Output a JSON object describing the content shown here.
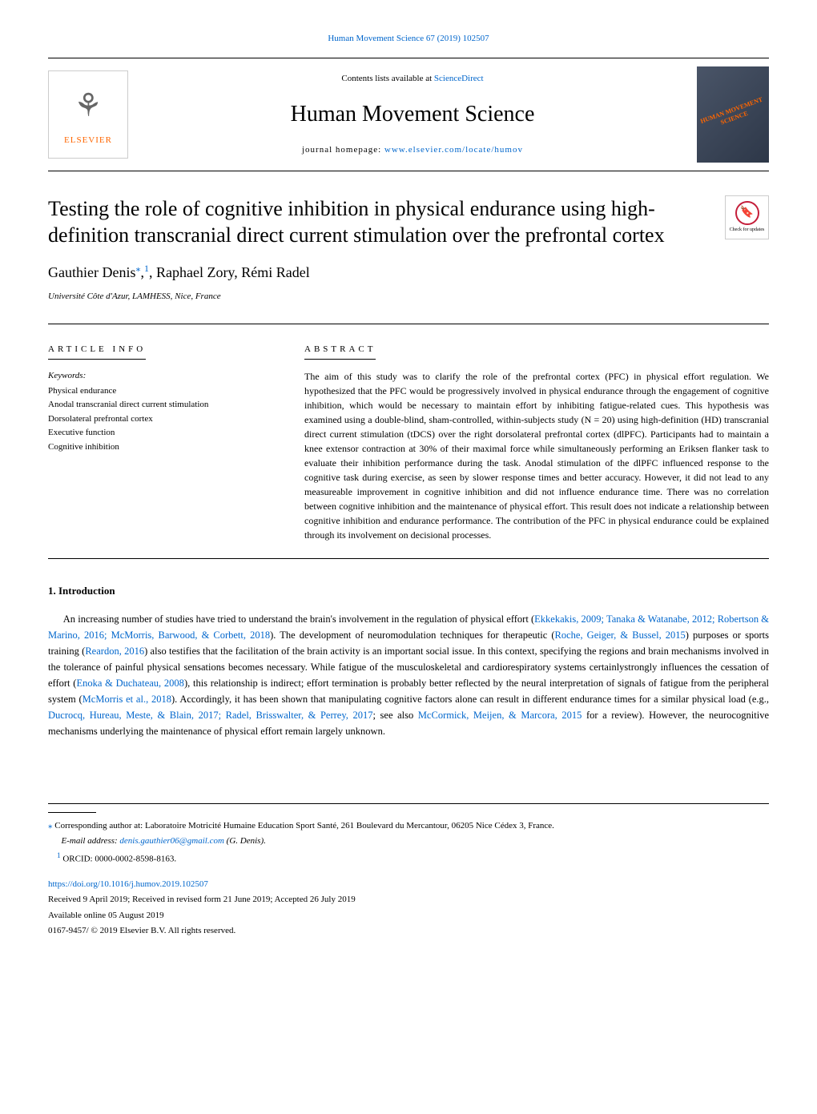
{
  "header": {
    "citation": "Human Movement Science 67 (2019) 102507",
    "citation_url": "Human Movement Science 67 (2019) 102507"
  },
  "banner": {
    "contents_prefix": "Contents lists available at ",
    "contents_link": "ScienceDirect",
    "journal": "Human Movement Science",
    "homepage_prefix": "journal homepage: ",
    "homepage_link": "www.elsevier.com/locate/humov",
    "publisher": "ELSEVIER",
    "cover_text": "HUMAN MOVEMENT SCIENCE"
  },
  "article": {
    "title": "Testing the role of cognitive inhibition in physical endurance using high-definition transcranial direct current stimulation over the prefrontal cortex",
    "authors_html": "Gauthier Denis",
    "author_sup1": "⁎",
    "author_sup2": "1",
    "authors_rest": ", Raphael Zory, Rémi Radel",
    "affiliation": "Université Côte d'Azur, LAMHESS, Nice, France",
    "check_updates": "Check for updates"
  },
  "info": {
    "heading": "ARTICLE INFO",
    "keywords_label": "Keywords:",
    "keywords": [
      "Physical endurance",
      "Anodal transcranial direct current stimulation",
      "Dorsolateral prefrontal cortex",
      "Executive function",
      "Cognitive inhibition"
    ]
  },
  "abstract": {
    "heading": "ABSTRACT",
    "text": "The aim of this study was to clarify the role of the prefrontal cortex (PFC) in physical effort regulation. We hypothesized that the PFC would be progressively involved in physical endurance through the engagement of cognitive inhibition, which would be necessary to maintain effort by inhibiting fatigue-related cues. This hypothesis was examined using a double-blind, sham-controlled, within-subjects study (N = 20) using high-definition (HD) transcranial direct current stimulation (tDCS) over the right dorsolateral prefrontal cortex (dlPFC). Participants had to maintain a knee extensor contraction at 30% of their maximal force while simultaneously performing an Eriksen flanker task to evaluate their inhibition performance during the task. Anodal stimulation of the dlPFC influenced response to the cognitive task during exercise, as seen by slower response times and better accuracy. However, it did not lead to any measureable improvement in cognitive inhibition and did not influence endurance time. There was no correlation between cognitive inhibition and the maintenance of physical effort. This result does not indicate a relationship between cognitive inhibition and endurance performance. The contribution of the PFC in physical endurance could be explained through its involvement on decisional processes."
  },
  "intro": {
    "heading": "1. Introduction",
    "p1_part1": "An increasing number of studies have tried to understand the brain's involvement in the regulation of physical effort (",
    "ref1": "Ekkekakis, 2009; Tanaka & Watanabe, 2012; Robertson & Marino, 2016; McMorris, Barwood, & Corbett, 2018",
    "p1_part2": "). The development of neuromodulation techniques for therapeutic (",
    "ref2": "Roche, Geiger, & Bussel, 2015",
    "p1_part3": ") purposes or sports training (",
    "ref3": "Reardon, 2016",
    "p1_part4": ") also testifies that the facilitation of the brain activity is an important social issue. In this context, specifying the regions and brain mechanisms involved in the tolerance of painful physical sensations becomes necessary. While fatigue of the musculoskeletal and cardiorespiratory systems certainlystrongly influences the cessation of effort (",
    "ref4": "Enoka & Duchateau, 2008",
    "p1_part5": "), this relationship is indirect; effort termination is probably better reflected by the neural interpretation of signals of fatigue from the peripheral system (",
    "ref5": "McMorris et al., 2018",
    "p1_part6": "). Accordingly, it has been shown that manipulating cognitive factors alone can result in different endurance times for a similar physical load (e.g., ",
    "ref6": "Ducrocq, Hureau, Meste, & Blain, 2017; Radel, Brisswalter, & Perrey, 2017",
    "p1_part7": "; see also ",
    "ref7": "McCormick, Meijen, & Marcora, 2015",
    "p1_part8": " for a review). However, the neurocognitive mechanisms underlying the maintenance of physical effort remain largely unknown."
  },
  "footer": {
    "corr_marker": "⁎",
    "corr_text": " Corresponding author at: Laboratoire Motricité Humaine Education Sport Santé, 261 Boulevard du Mercantour, 06205 Nice Cédex 3, France.",
    "email_label": "E-mail address: ",
    "email": "denis.gauthier06@gmail.com",
    "email_suffix": " (G. Denis).",
    "orcid_marker": "1",
    "orcid_text": " ORCID: 0000-0002-8598-8163.",
    "doi": "https://doi.org/10.1016/j.humov.2019.102507",
    "received": "Received 9 April 2019; Received in revised form 21 June 2019; Accepted 26 July 2019",
    "available": "Available online 05 August 2019",
    "copyright": "0167-9457/ © 2019 Elsevier B.V. All rights reserved."
  },
  "colors": {
    "link": "#0066cc",
    "accent": "#ff6600",
    "text": "#000000",
    "background": "#ffffff"
  }
}
